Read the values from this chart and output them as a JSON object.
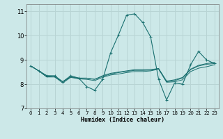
{
  "xlabel": "Humidex (Indice chaleur)",
  "xlim": [
    -0.5,
    23.5
  ],
  "ylim": [
    7.0,
    11.3
  ],
  "yticks": [
    7,
    8,
    9,
    10,
    11
  ],
  "xticks": [
    0,
    1,
    2,
    3,
    4,
    5,
    6,
    7,
    8,
    9,
    10,
    11,
    12,
    13,
    14,
    15,
    16,
    17,
    18,
    19,
    20,
    21,
    22,
    23
  ],
  "bg_color": "#cce8e8",
  "grid_color": "#b8d4d4",
  "line_color": "#1a7070",
  "series1_y": [
    8.75,
    8.55,
    8.35,
    8.35,
    8.1,
    8.35,
    8.25,
    7.9,
    7.75,
    8.2,
    9.3,
    10.05,
    10.85,
    10.9,
    10.55,
    9.95,
    8.2,
    7.35,
    8.05,
    8.0,
    8.8,
    9.35,
    9.0,
    8.85
  ],
  "series2_y": [
    8.75,
    8.55,
    8.35,
    8.3,
    8.1,
    8.3,
    8.25,
    8.25,
    8.2,
    8.35,
    8.45,
    8.5,
    8.55,
    8.6,
    8.6,
    8.6,
    8.65,
    8.1,
    8.15,
    8.25,
    8.6,
    8.75,
    8.82,
    8.85
  ],
  "series3_y": [
    8.75,
    8.55,
    8.3,
    8.3,
    8.05,
    8.28,
    8.22,
    8.2,
    8.15,
    8.28,
    8.38,
    8.42,
    8.48,
    8.52,
    8.52,
    8.55,
    8.62,
    8.08,
    8.1,
    8.18,
    8.52,
    8.66,
    8.72,
    8.8
  ],
  "series4_y": [
    8.75,
    8.55,
    8.3,
    8.3,
    8.1,
    8.3,
    8.25,
    8.25,
    8.2,
    8.32,
    8.42,
    8.48,
    8.53,
    8.57,
    8.57,
    8.58,
    8.64,
    8.13,
    8.18,
    8.28,
    8.62,
    8.78,
    8.85,
    8.9
  ]
}
